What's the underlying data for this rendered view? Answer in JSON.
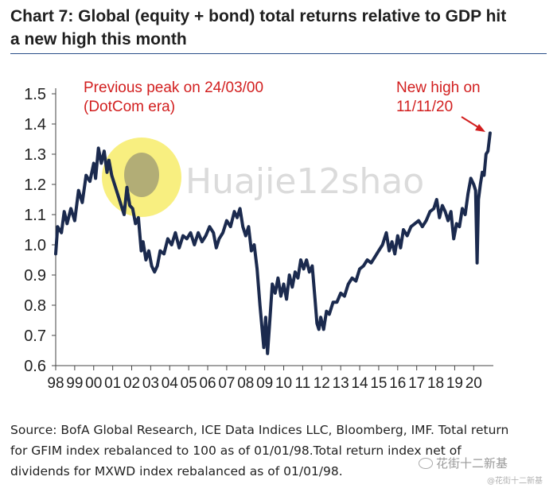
{
  "title_line1": "Chart 7: Global (equity + bond) total returns relative to GDP hit",
  "title_line2": "a new high this month",
  "source_line1": "Source: BofA Global Research, ICE Data Indices LLC, Bloomberg, IMF. Total return",
  "source_line2": "for GFIM index rebalanced to 100 as of 01/01/98.Total return index net of",
  "source_line3": "dividends for MXWD index rebalanced as of 01/01/98.",
  "watermark_text": "Huajie12shao",
  "watermark_cn": "花街十二新基",
  "watermark_cn_small": "@花街十二新基",
  "colors": {
    "series": "#1b2a4e",
    "annotation": "#d21f1f",
    "axis": "#444444",
    "title": "#1f1f1f",
    "rule": "#2a4f88"
  },
  "chart_data": {
    "type": "line",
    "title": "Global (equity + bond) total returns relative to GDP",
    "xlabel": "",
    "ylabel": "",
    "ylim": [
      0.6,
      1.5
    ],
    "xlim": [
      1998,
      2020.95
    ],
    "yticks": [
      "1.5",
      "1.4",
      "1.3",
      "1.2",
      "1.1",
      "1.0",
      "0.9",
      "0.8",
      "0.7",
      "0.6"
    ],
    "ytick_values": [
      1.5,
      1.4,
      1.3,
      1.2,
      1.1,
      1.0,
      0.9,
      0.8,
      0.7,
      0.6
    ],
    "xticks": [
      "98",
      "99",
      "00",
      "01",
      "02",
      "03",
      "04",
      "05",
      "06",
      "07",
      "08",
      "09",
      "10",
      "11",
      "12",
      "13",
      "14",
      "15",
      "16",
      "17",
      "18",
      "19",
      "20"
    ],
    "xtick_values": [
      1998,
      1999,
      2000,
      2001,
      2002,
      2003,
      2004,
      2005,
      2006,
      2007,
      2008,
      2009,
      2010,
      2011,
      2012,
      2013,
      2014,
      2015,
      2016,
      2017,
      2018,
      2019,
      2020
    ],
    "series": [
      {
        "name": "Global (equity + bond) total returns / GDP",
        "x": [
          1998.0,
          1998.1,
          1998.3,
          1998.45,
          1998.6,
          1998.8,
          1999.0,
          1999.2,
          1999.4,
          1999.6,
          1999.8,
          2000.0,
          2000.1,
          2000.25,
          2000.4,
          2000.55,
          2000.7,
          2000.8,
          2000.95,
          2001.1,
          2001.25,
          2001.45,
          2001.6,
          2001.75,
          2001.9,
          2002.05,
          2002.2,
          2002.35,
          2002.5,
          2002.6,
          2002.75,
          2002.9,
          2003.05,
          2003.2,
          2003.35,
          2003.5,
          2003.7,
          2003.9,
          2004.1,
          2004.3,
          2004.5,
          2004.7,
          2004.9,
          2005.1,
          2005.3,
          2005.5,
          2005.7,
          2005.9,
          2006.1,
          2006.3,
          2006.45,
          2006.6,
          2006.8,
          2007.0,
          2007.2,
          2007.4,
          2007.55,
          2007.7,
          2007.85,
          2008.0,
          2008.15,
          2008.3,
          2008.45,
          2008.6,
          2008.75,
          2008.85,
          2008.95,
          2009.05,
          2009.15,
          2009.25,
          2009.4,
          2009.55,
          2009.7,
          2009.85,
          2010.0,
          2010.15,
          2010.3,
          2010.45,
          2010.6,
          2010.75,
          2010.9,
          2011.05,
          2011.2,
          2011.35,
          2011.5,
          2011.65,
          2011.75,
          2011.85,
          2011.95,
          2012.1,
          2012.25,
          2012.4,
          2012.6,
          2012.8,
          2013.0,
          2013.2,
          2013.4,
          2013.6,
          2013.8,
          2014.0,
          2014.2,
          2014.4,
          2014.6,
          2014.8,
          2015.0,
          2015.2,
          2015.4,
          2015.55,
          2015.7,
          2015.85,
          2016.0,
          2016.15,
          2016.3,
          2016.5,
          2016.7,
          2016.9,
          2017.1,
          2017.3,
          2017.5,
          2017.7,
          2017.9,
          2018.05,
          2018.2,
          2018.35,
          2018.5,
          2018.65,
          2018.8,
          2018.95,
          2019.1,
          2019.25,
          2019.4,
          2019.55,
          2019.7,
          2019.85,
          2020.0,
          2020.1,
          2020.18,
          2020.25,
          2020.35,
          2020.45,
          2020.55,
          2020.65,
          2020.75,
          2020.86
        ],
        "values": [
          0.97,
          1.06,
          1.04,
          1.11,
          1.07,
          1.12,
          1.08,
          1.18,
          1.14,
          1.23,
          1.21,
          1.27,
          1.22,
          1.32,
          1.27,
          1.31,
          1.24,
          1.28,
          1.23,
          1.2,
          1.17,
          1.13,
          1.1,
          1.19,
          1.13,
          1.12,
          1.07,
          1.09,
          0.98,
          1.01,
          0.95,
          0.98,
          0.93,
          0.91,
          0.93,
          0.98,
          0.97,
          1.02,
          1.0,
          1.04,
          0.99,
          1.03,
          1.02,
          1.04,
          1.0,
          1.04,
          1.01,
          1.03,
          1.06,
          1.04,
          0.99,
          1.02,
          1.04,
          1.08,
          1.06,
          1.11,
          1.09,
          1.12,
          1.06,
          1.03,
          1.06,
          0.98,
          1.0,
          0.92,
          0.8,
          0.73,
          0.66,
          0.76,
          0.64,
          0.73,
          0.87,
          0.84,
          0.89,
          0.83,
          0.87,
          0.82,
          0.9,
          0.86,
          0.91,
          0.89,
          0.95,
          0.92,
          0.95,
          0.91,
          0.93,
          0.82,
          0.74,
          0.72,
          0.76,
          0.72,
          0.78,
          0.77,
          0.81,
          0.81,
          0.84,
          0.83,
          0.87,
          0.89,
          0.88,
          0.92,
          0.93,
          0.95,
          0.94,
          0.96,
          0.98,
          1.0,
          1.04,
          0.98,
          1.01,
          0.97,
          1.03,
          0.99,
          1.05,
          1.03,
          1.06,
          1.07,
          1.08,
          1.06,
          1.08,
          1.11,
          1.12,
          1.15,
          1.09,
          1.13,
          1.11,
          1.08,
          1.11,
          1.02,
          1.07,
          1.06,
          1.12,
          1.1,
          1.17,
          1.22,
          1.2,
          1.18,
          0.94,
          1.15,
          1.2,
          1.24,
          1.23,
          1.3,
          1.31,
          1.37
        ]
      }
    ],
    "annotations": [
      {
        "text_line1": "Previous peak on 24/03/00",
        "text_line2": "(DotCom era)"
      },
      {
        "text_line1": "New high on",
        "text_line2": "11/11/20"
      }
    ],
    "grid": false,
    "legend": "none"
  }
}
